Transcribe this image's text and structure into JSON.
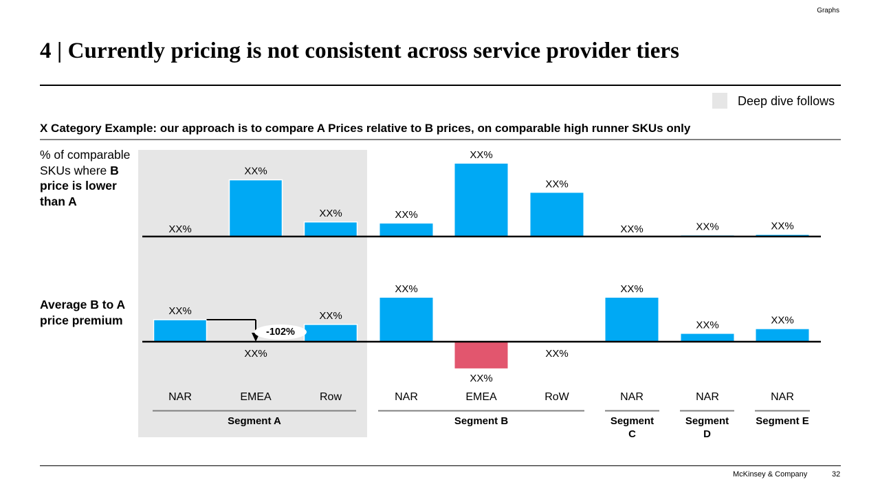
{
  "header": {
    "tracker": "Graphs",
    "title": "4 | Currently pricing is not consistent across service provider tiers",
    "legend": {
      "label": "Deep dive follows",
      "swatch_color": "#e6e6e6"
    },
    "subtitle": "X Category Example: our approach is to compare A Prices relative to B prices, on comparable high runner SKUs only"
  },
  "row_labels": {
    "row1": {
      "part1": "% of comparable SKUs where ",
      "bold": "B price is lower than A"
    },
    "row2": "Average B to A price premium"
  },
  "colors": {
    "positive": "#00a9f4",
    "negative": "#e2566e",
    "shade": "#e6e6e6",
    "axis": "#000000",
    "segment_rule": "#808080"
  },
  "chart_data": [
    {
      "type": "bar",
      "title": "% of comparable SKUs where B price is lower than A",
      "categories": [
        "NAR",
        "EMEA",
        "Row",
        "NAR",
        "EMEA",
        "RoW",
        "NAR",
        "NAR",
        "NAR"
      ],
      "values": [
        0,
        35,
        9,
        8,
        45,
        27,
        0,
        0.5,
        1
      ],
      "value_labels": [
        "XX%",
        "XX%",
        "XX%",
        "XX%",
        "XX%",
        "XX%",
        "XX%",
        "XX%",
        "XX%"
      ],
      "ylim": [
        0,
        50
      ],
      "units": "relative (labels masked)",
      "grid": false
    },
    {
      "type": "bar",
      "title": "Average B to A price premium",
      "categories": [
        "NAR",
        "EMEA",
        "Row",
        "NAR",
        "EMEA",
        "RoW",
        "NAR",
        "NAR",
        "NAR"
      ],
      "values": [
        14,
        0,
        11,
        28,
        -17,
        0,
        28,
        5,
        8
      ],
      "value_labels": [
        "XX%",
        "XX%",
        "XX%",
        "XX%",
        "XX%",
        "XX%",
        "XX%",
        "XX%",
        "XX%"
      ],
      "ylim": [
        -20,
        30
      ],
      "units": "relative (labels masked)",
      "grid": false,
      "annotations": [
        {
          "text": "-102%",
          "from_category_index": 0,
          "to_category_index": 1,
          "kind": "difference-arrow"
        }
      ]
    }
  ],
  "segments": [
    {
      "label": "Segment A",
      "category_indices": [
        0,
        1,
        2
      ],
      "deep_dive": true
    },
    {
      "label": "Segment B",
      "category_indices": [
        3,
        4,
        5
      ],
      "deep_dive": false
    },
    {
      "label": "Segment C",
      "category_indices": [
        6
      ],
      "deep_dive": false
    },
    {
      "label": "Segment D",
      "category_indices": [
        7
      ],
      "deep_dive": false
    },
    {
      "label": "Segment E",
      "category_indices": [
        8
      ],
      "deep_dive": false
    }
  ],
  "footer": {
    "brand": "McKinsey & Company",
    "page": "32"
  }
}
